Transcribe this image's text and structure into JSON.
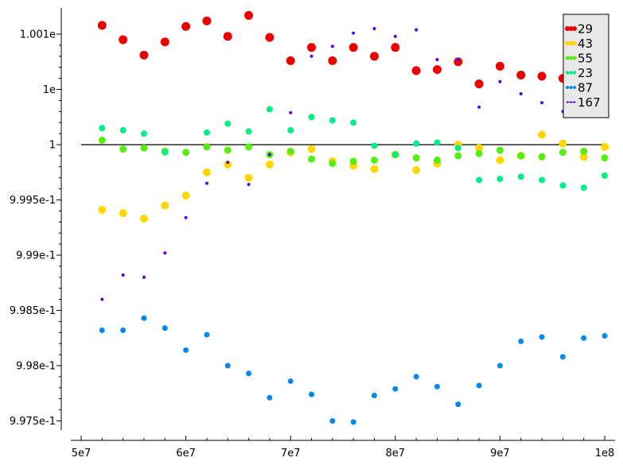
{
  "chart_data": {
    "type": "scatter",
    "xlim": [
      50000000,
      100000000
    ],
    "ylim": [
      0.99725,
      1.00125
    ],
    "x_ticks": [
      {
        "value": 50000000,
        "label": "5e7"
      },
      {
        "value": 60000000,
        "label": "6e7"
      },
      {
        "value": 70000000,
        "label": "7e7"
      },
      {
        "value": 80000000,
        "label": "8e7"
      },
      {
        "value": 90000000,
        "label": "9e7"
      },
      {
        "value": 100000000,
        "label": "1e8"
      }
    ],
    "y_ticks": [
      {
        "value": 1.001,
        "label": "1.001e"
      },
      {
        "value": 1.0005,
        "label": "1e"
      },
      {
        "value": 1.0,
        "label": "1"
      },
      {
        "value": 0.9995,
        "label": "9.995e-1"
      },
      {
        "value": 0.999,
        "label": "9.99e-1"
      },
      {
        "value": 0.9985,
        "label": "9.985e-1"
      },
      {
        "value": 0.998,
        "label": "9.98e-1"
      },
      {
        "value": 0.9975,
        "label": "9.975e-1"
      }
    ],
    "reference_line": {
      "y": 1.0,
      "color": "#000000"
    },
    "legend_position": "top-right",
    "grid": false,
    "x": [
      52000000,
      54000000,
      56000000,
      58000000,
      60000000,
      62000000,
      64000000,
      66000000,
      68000000,
      70000000,
      72000000,
      74000000,
      76000000,
      78000000,
      80000000,
      82000000,
      84000000,
      86000000,
      88000000,
      90000000,
      92000000,
      94000000,
      96000000,
      98000000,
      100000000
    ],
    "series": [
      {
        "name": "29",
        "color": "#ee0000",
        "size": 5.5,
        "values": [
          1.00108,
          1.00095,
          1.00081,
          1.00093,
          1.00107,
          1.00112,
          1.00098,
          1.00117,
          1.00097,
          1.00076,
          1.00088,
          1.00076,
          1.00088,
          1.0008,
          1.00088,
          1.00067,
          1.00068,
          1.00075,
          1.00055,
          1.00071,
          1.00063,
          1.00062,
          1.0006,
          null,
          null
        ]
      },
      {
        "name": "43",
        "color": "#ffd700",
        "size": 5,
        "values": [
          0.99941,
          0.99938,
          0.99933,
          0.99945,
          0.99954,
          0.99975,
          0.99982,
          0.9997,
          0.99982,
          0.99993,
          0.99996,
          0.99985,
          0.99981,
          0.99978,
          0.99991,
          0.99977,
          0.99983,
          1.0,
          0.99997,
          0.99986,
          0.9999,
          1.00009,
          1.00001,
          0.99989,
          0.99998
        ]
      },
      {
        "name": "55",
        "color": "#55ee11",
        "size": 4.5,
        "values": [
          1.00004,
          0.99996,
          0.99997,
          0.99994,
          0.99993,
          0.99998,
          0.99995,
          0.99998,
          0.99991,
          0.99994,
          0.99987,
          0.99983,
          0.99985,
          0.99986,
          0.99991,
          0.99988,
          0.99986,
          0.9999,
          0.99992,
          0.99995,
          0.9999,
          0.99989,
          0.99993,
          0.99994,
          0.99988
        ]
      },
      {
        "name": "23",
        "color": "#00ee88",
        "size": 4,
        "values": [
          1.00015,
          1.00013,
          1.0001,
          0.99993,
          null,
          1.00011,
          1.00019,
          1.00012,
          1.00032,
          1.00013,
          1.00025,
          1.00022,
          1.0002,
          0.99999,
          0.99991,
          1.00001,
          1.00002,
          0.99997,
          0.99968,
          0.99969,
          0.99971,
          0.99968,
          0.99963,
          0.99961,
          0.99972
        ]
      },
      {
        "name": "87",
        "color": "#0088ee",
        "size": 3.5,
        "values": [
          0.99832,
          0.99832,
          0.99843,
          0.99834,
          0.99814,
          0.99828,
          0.998,
          0.99793,
          0.99771,
          0.99786,
          0.99774,
          0.9975,
          0.99749,
          0.99773,
          0.99779,
          0.9979,
          0.99781,
          0.99765,
          0.99782,
          0.998,
          0.99822,
          0.99826,
          0.99808,
          0.99825,
          0.99827
        ]
      },
      {
        "name": "167",
        "color": "#5500ee",
        "size": 2,
        "values": [
          0.9986,
          0.99882,
          0.9988,
          0.99902,
          0.99934,
          0.99965,
          0.99984,
          0.99964,
          0.99991,
          1.00029,
          1.0008,
          1.00089,
          1.00101,
          1.00105,
          1.00098,
          1.00104,
          1.00077,
          1.00077,
          1.00034,
          1.00057,
          1.00046,
          1.00038,
          1.0003,
          null,
          null
        ]
      }
    ]
  }
}
